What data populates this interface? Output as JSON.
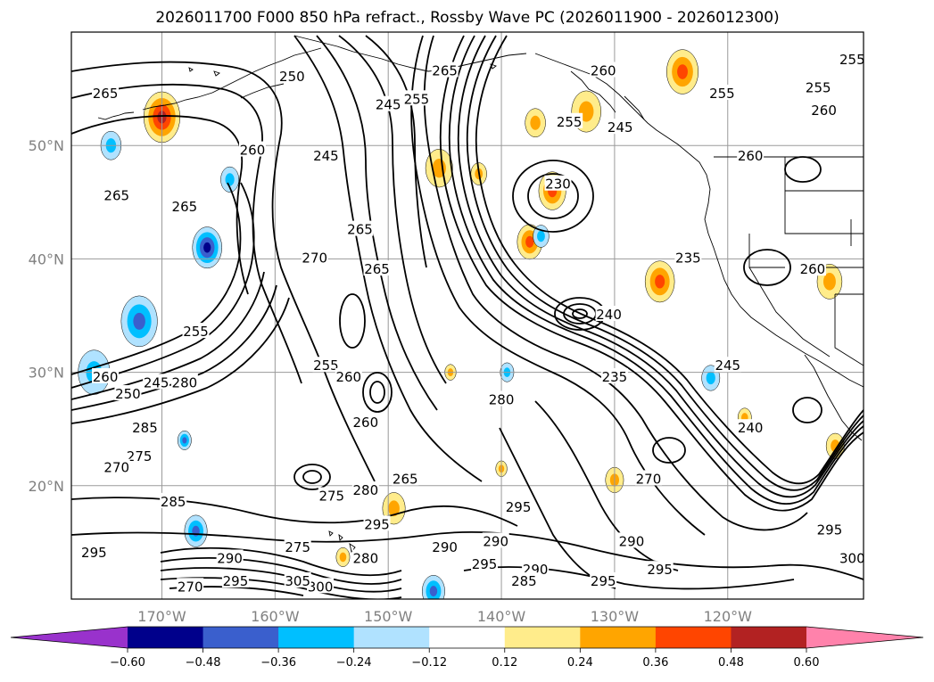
{
  "title": "2026011700 F000 850 hPa refract., Rossby Wave PC (2026011900 - 2026012300)",
  "map": {
    "lon_range": [
      -178,
      -108
    ],
    "lat_range": [
      10,
      60
    ],
    "lat_ticks": [
      {
        "value": 20,
        "label": "20°N"
      },
      {
        "value": 30,
        "label": "30°N"
      },
      {
        "value": 40,
        "label": "40°N"
      },
      {
        "value": 50,
        "label": "50°N"
      }
    ],
    "lon_ticks": [
      {
        "value": -170,
        "label": "170°W"
      },
      {
        "value": -160,
        "label": "160°W"
      },
      {
        "value": -150,
        "label": "150°W"
      },
      {
        "value": -140,
        "label": "140°W"
      },
      {
        "value": -130,
        "label": "130°W"
      },
      {
        "value": -120,
        "label": "120°W"
      }
    ],
    "contour_labels": [
      {
        "text": "265",
        "lon": -175,
        "lat": 54.5
      },
      {
        "text": "265",
        "lon": -174,
        "lat": 45.5
      },
      {
        "text": "265",
        "lon": -168,
        "lat": 44.5
      },
      {
        "text": "260",
        "lon": -162,
        "lat": 49.5
      },
      {
        "text": "250",
        "lon": -158.5,
        "lat": 56
      },
      {
        "text": "245",
        "lon": -155.5,
        "lat": 49
      },
      {
        "text": "245",
        "lon": -150,
        "lat": 53.5
      },
      {
        "text": "255",
        "lon": -147.5,
        "lat": 54
      },
      {
        "text": "265",
        "lon": -145,
        "lat": 56.5
      },
      {
        "text": "260",
        "lon": -131,
        "lat": 56.5
      },
      {
        "text": "255",
        "lon": -134,
        "lat": 52
      },
      {
        "text": "245",
        "lon": -129.5,
        "lat": 51.5
      },
      {
        "text": "230",
        "lon": -135,
        "lat": 46.5
      },
      {
        "text": "255",
        "lon": -120.5,
        "lat": 54.5
      },
      {
        "text": "260",
        "lon": -118,
        "lat": 49
      },
      {
        "text": "255",
        "lon": -112,
        "lat": 55
      },
      {
        "text": "260",
        "lon": -111.5,
        "lat": 53
      },
      {
        "text": "255",
        "lon": -109,
        "lat": 57.5
      },
      {
        "text": "235",
        "lon": -123.5,
        "lat": 40
      },
      {
        "text": "260",
        "lon": -112.5,
        "lat": 39
      },
      {
        "text": "270",
        "lon": -156.5,
        "lat": 40
      },
      {
        "text": "265",
        "lon": -152.5,
        "lat": 42.5
      },
      {
        "text": "265",
        "lon": -151,
        "lat": 39
      },
      {
        "text": "255",
        "lon": -167,
        "lat": 33.5
      },
      {
        "text": "260",
        "lon": -175,
        "lat": 29.5
      },
      {
        "text": "250",
        "lon": -173,
        "lat": 28
      },
      {
        "text": "245",
        "lon": -170.5,
        "lat": 29
      },
      {
        "text": "280",
        "lon": -168,
        "lat": 29
      },
      {
        "text": "285",
        "lon": -171.5,
        "lat": 25
      },
      {
        "text": "275",
        "lon": -172,
        "lat": 22.5
      },
      {
        "text": "270",
        "lon": -174,
        "lat": 21.5
      },
      {
        "text": "255",
        "lon": -155.5,
        "lat": 30.5
      },
      {
        "text": "260",
        "lon": -153.5,
        "lat": 29.5
      },
      {
        "text": "260",
        "lon": -152,
        "lat": 25.5
      },
      {
        "text": "280",
        "lon": -140,
        "lat": 27.5
      },
      {
        "text": "235",
        "lon": -130,
        "lat": 29.5
      },
      {
        "text": "240",
        "lon": -130.5,
        "lat": 35
      },
      {
        "text": "245",
        "lon": -120,
        "lat": 30.5
      },
      {
        "text": "240",
        "lon": -118,
        "lat": 25
      },
      {
        "text": "270",
        "lon": -127,
        "lat": 20.5
      },
      {
        "text": "285",
        "lon": -169,
        "lat": 18.5
      },
      {
        "text": "275",
        "lon": -155,
        "lat": 19
      },
      {
        "text": "280",
        "lon": -152,
        "lat": 19.5
      },
      {
        "text": "265",
        "lon": -148.5,
        "lat": 20.5
      },
      {
        "text": "295",
        "lon": -138.5,
        "lat": 18
      },
      {
        "text": "295",
        "lon": -176,
        "lat": 14
      },
      {
        "text": "290",
        "lon": -164,
        "lat": 13.5
      },
      {
        "text": "275",
        "lon": -158,
        "lat": 14.5
      },
      {
        "text": "295",
        "lon": -151,
        "lat": 16.5
      },
      {
        "text": "290",
        "lon": -145,
        "lat": 14.5
      },
      {
        "text": "290",
        "lon": -140.5,
        "lat": 15
      },
      {
        "text": "295",
        "lon": -141.5,
        "lat": 13
      },
      {
        "text": "280",
        "lon": -152,
        "lat": 13.5
      },
      {
        "text": "290",
        "lon": -137,
        "lat": 12.5
      },
      {
        "text": "285",
        "lon": -138,
        "lat": 11.5
      },
      {
        "text": "295",
        "lon": -131,
        "lat": 11.5
      },
      {
        "text": "295",
        "lon": -126,
        "lat": 12.5
      },
      {
        "text": "290",
        "lon": -128.5,
        "lat": 15
      },
      {
        "text": "295",
        "lon": -111,
        "lat": 16
      },
      {
        "text": "300",
        "lon": -109,
        "lat": 13.5
      },
      {
        "text": "270",
        "lon": -167.5,
        "lat": 11
      },
      {
        "text": "295",
        "lon": -163.5,
        "lat": 11.5
      },
      {
        "text": "300",
        "lon": -156,
        "lat": 11
      },
      {
        "text": "305",
        "lon": -158,
        "lat": 11.5
      }
    ]
  },
  "colorbar": {
    "ticks": [
      "−0.60",
      "−0.48",
      "−0.36",
      "−0.24",
      "−0.12",
      "0.12",
      "0.24",
      "0.36",
      "0.48",
      "0.60"
    ],
    "colors": [
      "#9932cc",
      "#00008b",
      "#3a5fcd",
      "#00bfff",
      "#b0e2ff",
      "#ffffff",
      "#ffec8b",
      "#ffa500",
      "#ff4500",
      "#b22222",
      "#ff82ab"
    ]
  },
  "fills": [
    {
      "lon": -170,
      "lat": 52.5,
      "r": 1.6,
      "colors": [
        "#ffec8b",
        "#ffa500",
        "#ff4500",
        "#b22222"
      ]
    },
    {
      "lon": -124,
      "lat": 56.5,
      "r": 1.4,
      "colors": [
        "#ffec8b",
        "#ffa500",
        "#ff4500"
      ]
    },
    {
      "lon": -132.5,
      "lat": 53,
      "r": 1.3,
      "colors": [
        "#ffec8b",
        "#ffa500"
      ]
    },
    {
      "lon": -137,
      "lat": 52,
      "r": 0.9,
      "colors": [
        "#ffec8b",
        "#ffa500"
      ]
    },
    {
      "lon": -135.5,
      "lat": 46,
      "r": 1.2,
      "colors": [
        "#ffec8b",
        "#ffa500",
        "#ff4500"
      ]
    },
    {
      "lon": -137.5,
      "lat": 41.5,
      "r": 1.1,
      "colors": [
        "#ffec8b",
        "#ffa500",
        "#ff4500"
      ]
    },
    {
      "lon": -145.5,
      "lat": 48,
      "r": 1.2,
      "colors": [
        "#ffec8b",
        "#ffa500"
      ]
    },
    {
      "lon": -126,
      "lat": 38,
      "r": 1.3,
      "colors": [
        "#ffec8b",
        "#ffa500",
        "#ff4500"
      ]
    },
    {
      "lon": -111,
      "lat": 38,
      "r": 1.1,
      "colors": [
        "#ffec8b",
        "#ffa500"
      ]
    },
    {
      "lon": -142,
      "lat": 47.5,
      "r": 0.7,
      "colors": [
        "#ffec8b",
        "#ffa500"
      ]
    },
    {
      "lon": -166,
      "lat": 41,
      "r": 1.3,
      "colors": [
        "#b0e2ff",
        "#00bfff",
        "#3a5fcd",
        "#00008b"
      ]
    },
    {
      "lon": -172,
      "lat": 34.5,
      "r": 1.6,
      "colors": [
        "#b0e2ff",
        "#00bfff",
        "#3a5fcd"
      ]
    },
    {
      "lon": -176,
      "lat": 30,
      "r": 1.4,
      "colors": [
        "#b0e2ff",
        "#00bfff"
      ]
    },
    {
      "lon": -174.5,
      "lat": 50,
      "r": 0.9,
      "colors": [
        "#b0e2ff",
        "#00bfff"
      ]
    },
    {
      "lon": -164,
      "lat": 47,
      "r": 0.8,
      "colors": [
        "#b0e2ff",
        "#00bfff"
      ]
    },
    {
      "lon": -136.5,
      "lat": 42,
      "r": 0.7,
      "colors": [
        "#b0e2ff",
        "#00bfff"
      ]
    },
    {
      "lon": -121.5,
      "lat": 29.5,
      "r": 0.8,
      "colors": [
        "#b0e2ff",
        "#00bfff"
      ]
    },
    {
      "lon": -167,
      "lat": 16,
      "r": 1.0,
      "colors": [
        "#b0e2ff",
        "#00bfff",
        "#3a5fcd"
      ]
    },
    {
      "lon": -146,
      "lat": 10.7,
      "r": 1.0,
      "colors": [
        "#b0e2ff",
        "#00bfff",
        "#3a5fcd"
      ]
    },
    {
      "lon": -139.5,
      "lat": 30,
      "r": 0.6,
      "colors": [
        "#b0e2ff",
        "#00bfff"
      ]
    },
    {
      "lon": -168,
      "lat": 24,
      "r": 0.6,
      "colors": [
        "#b0e2ff",
        "#00bfff",
        "#3a5fcd"
      ]
    },
    {
      "lon": -149.5,
      "lat": 18,
      "r": 1.0,
      "colors": [
        "#ffec8b",
        "#ffa500"
      ]
    },
    {
      "lon": -130,
      "lat": 20.5,
      "r": 0.8,
      "colors": [
        "#ffec8b",
        "#ffa500"
      ]
    },
    {
      "lon": -118.5,
      "lat": 26,
      "r": 0.6,
      "colors": [
        "#ffec8b",
        "#ffa500"
      ]
    },
    {
      "lon": -110.5,
      "lat": 23.5,
      "r": 0.8,
      "colors": [
        "#ffec8b",
        "#ffa500"
      ]
    },
    {
      "lon": -154,
      "lat": 13.7,
      "r": 0.6,
      "colors": [
        "#ffec8b",
        "#ffa500"
      ]
    },
    {
      "lon": -140,
      "lat": 21.5,
      "r": 0.5,
      "colors": [
        "#ffec8b",
        "#ffa500"
      ]
    },
    {
      "lon": -144.5,
      "lat": 30,
      "r": 0.5,
      "colors": [
        "#ffec8b",
        "#ffa500"
      ]
    }
  ]
}
